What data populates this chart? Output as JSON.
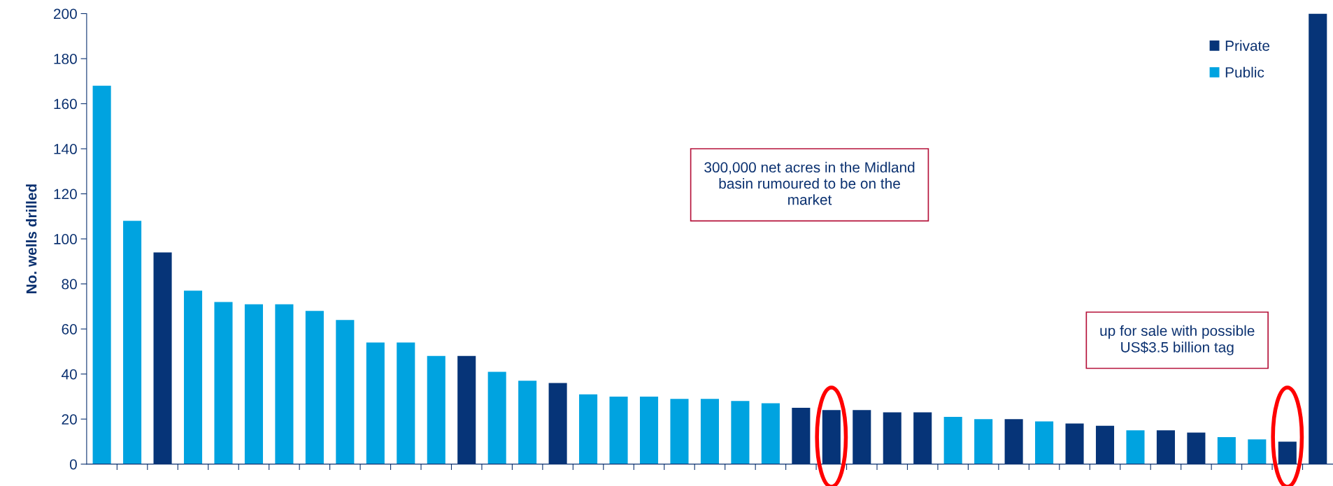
{
  "chart_data": {
    "type": "bar",
    "ylabel": "No. wells drilled",
    "categories": [
      null,
      null,
      null,
      null,
      null,
      null,
      null,
      null,
      null,
      null,
      null,
      null,
      null,
      null,
      null,
      null,
      null,
      null,
      null,
      null,
      null,
      null,
      null,
      null,
      null,
      null,
      null,
      null,
      null,
      null,
      null,
      null,
      null,
      null,
      null,
      null,
      null,
      null,
      null,
      null,
      null
    ],
    "series": [
      {
        "name": "Private",
        "color": "#063478",
        "values": [
          null,
          null,
          94,
          null,
          null,
          null,
          null,
          null,
          null,
          null,
          null,
          null,
          48,
          null,
          null,
          36,
          null,
          null,
          null,
          null,
          null,
          null,
          null,
          25,
          24,
          24,
          23,
          23,
          null,
          null,
          20,
          null,
          18,
          17,
          null,
          15,
          14,
          null,
          null,
          10,
          null
        ]
      },
      {
        "name": "Public",
        "color": "#00a3e0",
        "values": [
          168,
          108,
          null,
          77,
          72,
          71,
          71,
          68,
          64,
          54,
          54,
          48,
          null,
          41,
          37,
          null,
          31,
          30,
          30,
          29,
          29,
          28,
          27,
          null,
          null,
          null,
          null,
          null,
          21,
          20,
          null,
          19,
          null,
          null,
          15,
          null,
          null,
          12,
          11,
          null,
          null
        ]
      },
      {
        "color": "#063478",
        "values": [
          null,
          null,
          null,
          null,
          null,
          null,
          null,
          null,
          null,
          null,
          null,
          null,
          null,
          null,
          null,
          null,
          null,
          null,
          null,
          null,
          null,
          null,
          null,
          null,
          null,
          null,
          null,
          null,
          null,
          null,
          null,
          null,
          null,
          null,
          null,
          null,
          null,
          null,
          null,
          null,
          200
        ]
      }
    ],
    "ylim": [
      0,
      200
    ],
    "yticks": [
      0,
      20,
      40,
      60,
      80,
      100,
      120,
      140,
      160,
      180,
      200
    ],
    "grid": false,
    "legend": "top right",
    "annotations": [
      "300,000 net acres in the Midland basin rumoured to be on the market",
      "up for sale with possible US$3.5 billion tag"
    ]
  }
}
